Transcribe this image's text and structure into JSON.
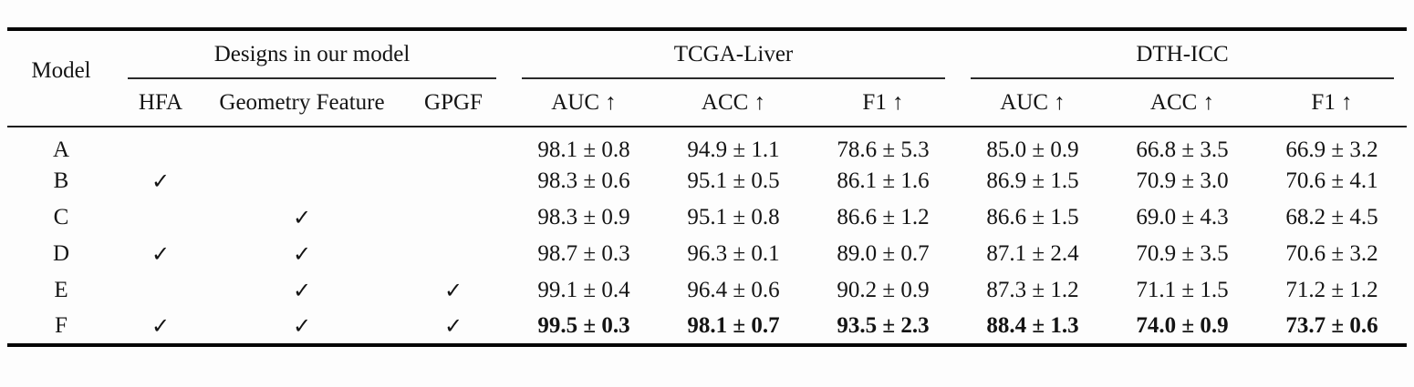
{
  "table": {
    "header": {
      "model": "Model",
      "groups": [
        {
          "label": "Designs in our model",
          "cols": [
            "HFA",
            "Geometry Feature",
            "GPGF"
          ]
        },
        {
          "label": "TCGA-Liver",
          "cols": [
            "AUC ↑",
            "ACC ↑",
            "F1 ↑"
          ]
        },
        {
          "label": "DTH-ICC",
          "cols": [
            "AUC ↑",
            "ACC ↑",
            "F1 ↑"
          ]
        }
      ]
    },
    "checkmark_glyph": "✓",
    "colors": {
      "rule_thick": "#050505",
      "rule_thin": "#1c1c1c",
      "text": "#141414",
      "background": "#fdfdfd"
    },
    "rows": [
      {
        "model": "A",
        "bold": false,
        "designs": [
          "",
          "",
          ""
        ],
        "tcga_liver": [
          "98.1 ± 0.8",
          "94.9 ± 1.1",
          "78.6 ± 5.3"
        ],
        "dth_icc": [
          "85.0 ± 0.9",
          "66.8 ± 3.5",
          "66.9 ± 3.2"
        ]
      },
      {
        "model": "B",
        "bold": false,
        "designs": [
          "✓",
          "",
          ""
        ],
        "tcga_liver": [
          "98.3 ± 0.6",
          "95.1 ± 0.5",
          "86.1 ± 1.6"
        ],
        "dth_icc": [
          "86.9 ± 1.5",
          "70.9 ± 3.0",
          "70.6 ± 4.1"
        ]
      },
      {
        "model": "C",
        "bold": false,
        "designs": [
          "",
          "✓",
          ""
        ],
        "tcga_liver": [
          "98.3 ± 0.9",
          "95.1 ± 0.8",
          "86.6 ± 1.2"
        ],
        "dth_icc": [
          "86.6 ± 1.5",
          "69.0 ± 4.3",
          "68.2 ± 4.5"
        ]
      },
      {
        "model": "D",
        "bold": false,
        "designs": [
          "✓",
          "✓",
          ""
        ],
        "tcga_liver": [
          "98.7 ± 0.3",
          "96.3 ± 0.1",
          "89.0 ± 0.7"
        ],
        "dth_icc": [
          "87.1 ± 2.4",
          "70.9 ± 3.5",
          "70.6 ± 3.2"
        ]
      },
      {
        "model": "E",
        "bold": false,
        "designs": [
          "",
          "✓",
          "✓"
        ],
        "tcga_liver": [
          "99.1 ± 0.4",
          "96.4 ± 0.6",
          "90.2 ± 0.9"
        ],
        "dth_icc": [
          "87.3 ± 1.2",
          "71.1 ± 1.5",
          "71.2 ± 1.2"
        ]
      },
      {
        "model": "F",
        "bold": true,
        "designs": [
          "✓",
          "✓",
          "✓"
        ],
        "tcga_liver": [
          "99.5 ± 0.3",
          "98.1 ± 0.7",
          "93.5 ± 2.3"
        ],
        "dth_icc": [
          "88.4 ± 1.3",
          "74.0 ± 0.9",
          "73.7 ± 0.6"
        ]
      }
    ]
  }
}
